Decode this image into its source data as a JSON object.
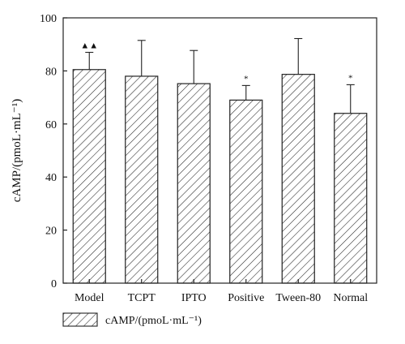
{
  "chart_data": {
    "type": "bar",
    "categories": [
      "Model",
      "TCPT",
      "IPTO",
      "Positive",
      "Tween-80",
      "Normal"
    ],
    "values": [
      80.5,
      78,
      75.2,
      69,
      78.7,
      64
    ],
    "error_upper": [
      6.5,
      13.5,
      12.5,
      5.5,
      13.5,
      10.8
    ],
    "markers": [
      "▲▲",
      "",
      "",
      "*",
      "",
      "*"
    ],
    "ylabel": "cAMP/(pmoL·mL⁻¹)",
    "xlabel": "",
    "ylim": [
      0,
      100
    ],
    "yticks": [
      0,
      20,
      40,
      60,
      80,
      100
    ],
    "series": [
      {
        "name": "cAMP/(pmoL·mL⁻¹)",
        "values": [
          80.5,
          78,
          75.2,
          69,
          78.7,
          64
        ]
      }
    ],
    "legend_position": "bottom-left",
    "grid": false,
    "bar_fill": "hatched",
    "colors": {
      "stroke": "#222222",
      "background": "#ffffff"
    }
  }
}
